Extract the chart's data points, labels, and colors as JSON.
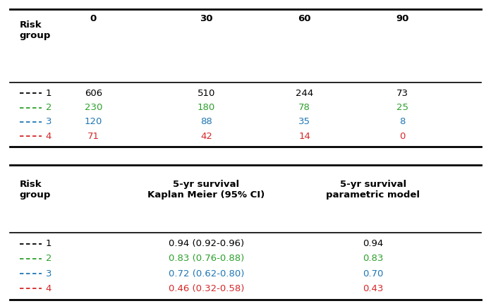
{
  "table1": {
    "header_cols": [
      "0",
      "30",
      "60",
      "90"
    ],
    "rows": [
      {
        "label": "1",
        "color": "#000000",
        "values": [
          "606",
          "510",
          "244",
          "73"
        ]
      },
      {
        "label": "2",
        "color": "#2ca02c",
        "values": [
          "230",
          "180",
          "78",
          "25"
        ]
      },
      {
        "label": "3",
        "color": "#1f77b4",
        "values": [
          "120",
          "88",
          "35",
          "8"
        ]
      },
      {
        "label": "4",
        "color": "#d62728",
        "values": [
          "71",
          "42",
          "14",
          "0"
        ]
      }
    ]
  },
  "table2": {
    "header_col2": "5-yr survival\nKaplan Meier (95% CI)",
    "header_col3": "5-yr survival\nparametric model",
    "rows": [
      {
        "label": "1",
        "color": "#000000",
        "km": "0.94 (0.92-0.96)",
        "param": "0.94"
      },
      {
        "label": "2",
        "color": "#2ca02c",
        "km": "0.83 (0.76-0.88)",
        "param": "0.83"
      },
      {
        "label": "3",
        "color": "#1f77b4",
        "km": "0.72 (0.62-0.80)",
        "param": "0.70"
      },
      {
        "label": "4",
        "color": "#d62728",
        "km": "0.46 (0.32-0.58)",
        "param": "0.43"
      }
    ]
  },
  "fontsize": 9.5,
  "header_fontsize": 9.5,
  "figsize": [
    6.96,
    4.34
  ],
  "dpi": 100
}
